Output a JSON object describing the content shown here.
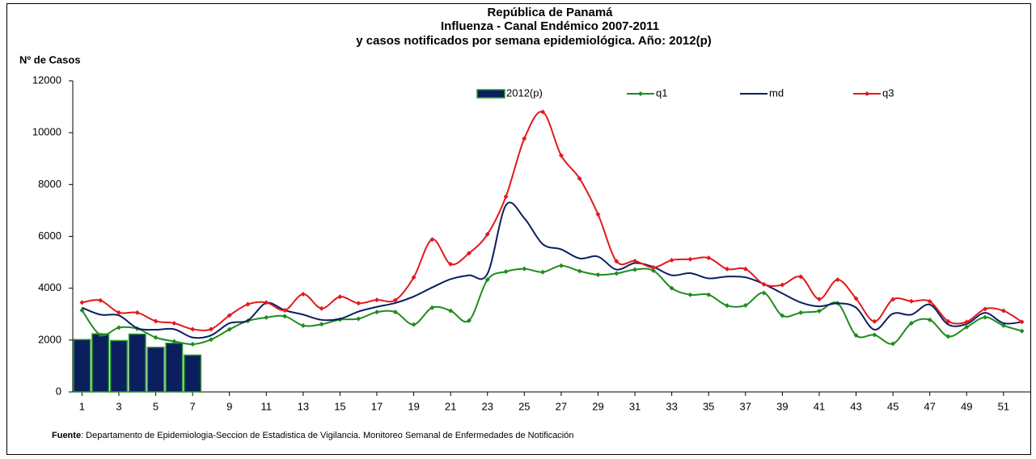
{
  "chart_data": {
    "type": "combo",
    "title": [
      "República de Panamá",
      "Influenza - Canal Endémico  2007-2011",
      "y casos notificados por semana epidemiológica.  Año: 2012(p)"
    ],
    "y_label": "Nº de Casos",
    "source_label": "Fuente",
    "source": ": Departamento de Epidemiologia-Seccion de Estadistica de Vigilancia. Monitoreo Semanal de Enfermedades de Notificación",
    "x": [
      1,
      2,
      3,
      4,
      5,
      6,
      7,
      8,
      9,
      10,
      11,
      12,
      13,
      14,
      15,
      16,
      17,
      18,
      19,
      20,
      21,
      22,
      23,
      24,
      25,
      26,
      27,
      28,
      29,
      30,
      31,
      32,
      33,
      34,
      35,
      36,
      37,
      38,
      39,
      40,
      41,
      42,
      43,
      44,
      45,
      46,
      47,
      48,
      49,
      50,
      51,
      52
    ],
    "xlim": [
      0.5,
      52.5
    ],
    "xticks": [
      1,
      3,
      5,
      7,
      9,
      11,
      13,
      15,
      17,
      19,
      21,
      23,
      25,
      27,
      29,
      31,
      33,
      35,
      37,
      39,
      41,
      43,
      45,
      47,
      49,
      51
    ],
    "ylim": [
      0,
      12000
    ],
    "yticks": [
      0,
      2000,
      4000,
      6000,
      8000,
      10000,
      12000
    ],
    "series": [
      {
        "name": "2012(p)",
        "kind": "bar",
        "color": "#0b1f5e",
        "edge_color": "#2e9a2e",
        "values": [
          2020,
          2240,
          1980,
          2230,
          1720,
          1880,
          1420,
          null,
          null,
          null,
          null,
          null,
          null,
          null,
          null,
          null,
          null,
          null,
          null,
          null,
          null,
          null,
          null,
          null,
          null,
          null,
          null,
          null,
          null,
          null,
          null,
          null,
          null,
          null,
          null,
          null,
          null,
          null,
          null,
          null,
          null,
          null,
          null,
          null,
          null,
          null,
          null,
          null,
          null,
          null,
          null,
          null
        ]
      },
      {
        "name": "q1",
        "kind": "line",
        "marker": true,
        "color": "#1e8c1e",
        "values": [
          3150,
          2200,
          2480,
          2440,
          2100,
          1950,
          1840,
          2020,
          2410,
          2740,
          2870,
          2920,
          2560,
          2610,
          2790,
          2820,
          3080,
          3080,
          2600,
          3250,
          3130,
          2750,
          4330,
          4640,
          4750,
          4620,
          4870,
          4660,
          4520,
          4570,
          4720,
          4680,
          4000,
          3750,
          3750,
          3330,
          3340,
          3820,
          2940,
          3060,
          3120,
          3420,
          2180,
          2200,
          1860,
          2650,
          2780,
          2140,
          2500,
          2880,
          2560,
          2350
        ]
      },
      {
        "name": "md",
        "kind": "line",
        "marker": false,
        "color": "#0b1f5e",
        "values": [
          3250,
          2980,
          2950,
          2460,
          2400,
          2420,
          2100,
          2180,
          2650,
          2760,
          3430,
          3150,
          2980,
          2780,
          2820,
          3100,
          3280,
          3430,
          3680,
          4030,
          4350,
          4500,
          4560,
          7200,
          6700,
          5700,
          5500,
          5150,
          5220,
          4720,
          4970,
          4820,
          4500,
          4580,
          4380,
          4450,
          4420,
          4160,
          3800,
          3450,
          3300,
          3420,
          3250,
          2400,
          3020,
          2980,
          3370,
          2600,
          2620,
          3050,
          2650,
          2700
        ]
      },
      {
        "name": "q3",
        "kind": "line",
        "marker": true,
        "color": "#e3191b",
        "values": [
          3450,
          3530,
          3060,
          3060,
          2730,
          2650,
          2420,
          2420,
          2950,
          3380,
          3450,
          3150,
          3770,
          3220,
          3670,
          3420,
          3550,
          3540,
          4420,
          5880,
          4930,
          5350,
          6080,
          7530,
          9770,
          10800,
          9120,
          8230,
          6850,
          5040,
          5050,
          4800,
          5080,
          5120,
          5170,
          4740,
          4740,
          4150,
          4130,
          4440,
          3580,
          4330,
          3600,
          2720,
          3570,
          3500,
          3490,
          2720,
          2700,
          3200,
          3130,
          2700
        ]
      }
    ]
  }
}
